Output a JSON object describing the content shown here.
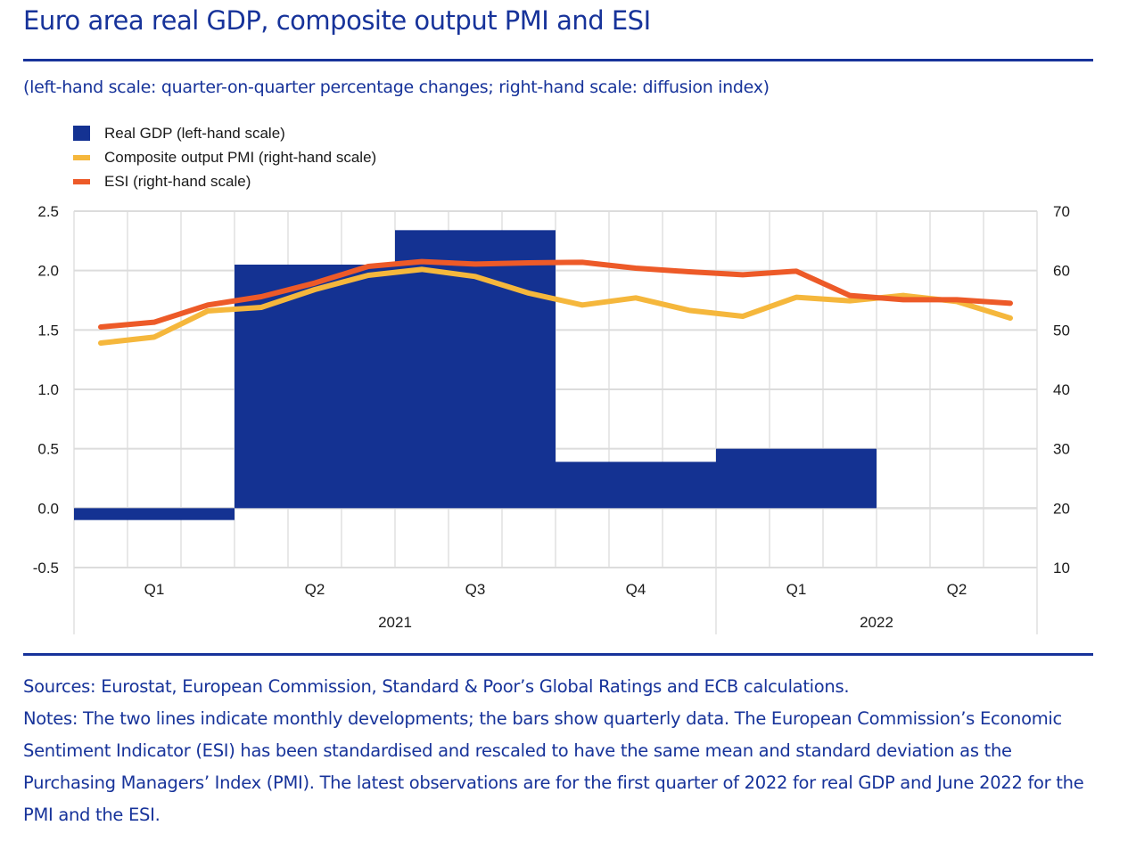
{
  "header": {
    "title": "Euro area real GDP, composite output PMI and ESI",
    "subtitle": "(left-hand scale: quarter-on-quarter percentage changes; right-hand scale: diffusion index)"
  },
  "colors": {
    "brand": "#17339a",
    "gdp": "#143292",
    "pmi": "#f5b73c",
    "esi": "#ed5a28",
    "grid": "#dcdcdc"
  },
  "chart_data": {
    "type": "bar+line",
    "title": "Euro area real GDP, composite output PMI and ESI",
    "legend_position": "top-left",
    "legend": [
      {
        "name": "Real GDP (left-hand scale)",
        "kind": "bar"
      },
      {
        "name": "Composite output PMI (right-hand scale)",
        "kind": "line"
      },
      {
        "name": "ESI (right-hand scale)",
        "kind": "line"
      }
    ],
    "months": [
      "2021-01",
      "2021-02",
      "2021-03",
      "2021-04",
      "2021-05",
      "2021-06",
      "2021-07",
      "2021-08",
      "2021-09",
      "2021-10",
      "2021-11",
      "2021-12",
      "2022-01",
      "2022-02",
      "2022-03",
      "2022-04",
      "2022-05",
      "2022-06"
    ],
    "quarters": [
      {
        "label": "Q1",
        "year": "2021"
      },
      {
        "label": "Q2",
        "year": "2021"
      },
      {
        "label": "Q3",
        "year": "2021"
      },
      {
        "label": "Q4",
        "year": "2021"
      },
      {
        "label": "Q1",
        "year": "2022"
      },
      {
        "label": "Q2",
        "year": "2022"
      }
    ],
    "years": [
      {
        "label": "2021",
        "quarters": 4
      },
      {
        "label": "2022",
        "quarters": 2
      }
    ],
    "series": [
      {
        "name": "Real GDP (left-hand scale)",
        "axis": "left",
        "kind": "bar",
        "values": [
          -0.1,
          2.05,
          2.34,
          0.39,
          0.5,
          null
        ]
      },
      {
        "name": "Composite output PMI (right-hand scale)",
        "axis": "right",
        "kind": "line",
        "values": [
          47.8,
          48.8,
          53.2,
          53.8,
          56.8,
          59.2,
          60.2,
          59.0,
          56.2,
          54.2,
          55.4,
          53.3,
          52.3,
          55.5,
          54.9,
          55.8,
          54.8,
          52.0
        ]
      },
      {
        "name": "ESI (right-hand scale)",
        "axis": "right",
        "kind": "line",
        "values": [
          50.5,
          51.3,
          54.2,
          55.6,
          57.9,
          60.7,
          61.5,
          61.1,
          61.3,
          61.4,
          60.4,
          59.8,
          59.3,
          59.9,
          55.8,
          55.1,
          55.1,
          54.5
        ]
      }
    ],
    "left_axis": {
      "label": "quarter-on-quarter percentage changes",
      "range": [
        -0.5,
        2.5
      ],
      "ticks": [
        "2.5",
        "2.0",
        "1.5",
        "1.0",
        "0.5",
        "0.0",
        "-0.5"
      ]
    },
    "right_axis": {
      "label": "diffusion index",
      "range": [
        10,
        70
      ],
      "ticks": [
        "70",
        "60",
        "50",
        "40",
        "30",
        "20",
        "10"
      ]
    },
    "grid": true
  },
  "footer": {
    "sources": "Sources: Eurostat, European Commission, Standard & Poor’s Global Ratings and ECB calculations.",
    "notes": "Notes: The two lines indicate monthly developments; the bars show quarterly data. The European Commission’s Economic Sentiment Indicator (ESI) has been standardised and rescaled to have the same mean and standard deviation as the Purchasing Managers’ Index (PMI). The latest observations are for the first quarter of 2022 for real GDP and June 2022 for the PMI and the ESI."
  }
}
